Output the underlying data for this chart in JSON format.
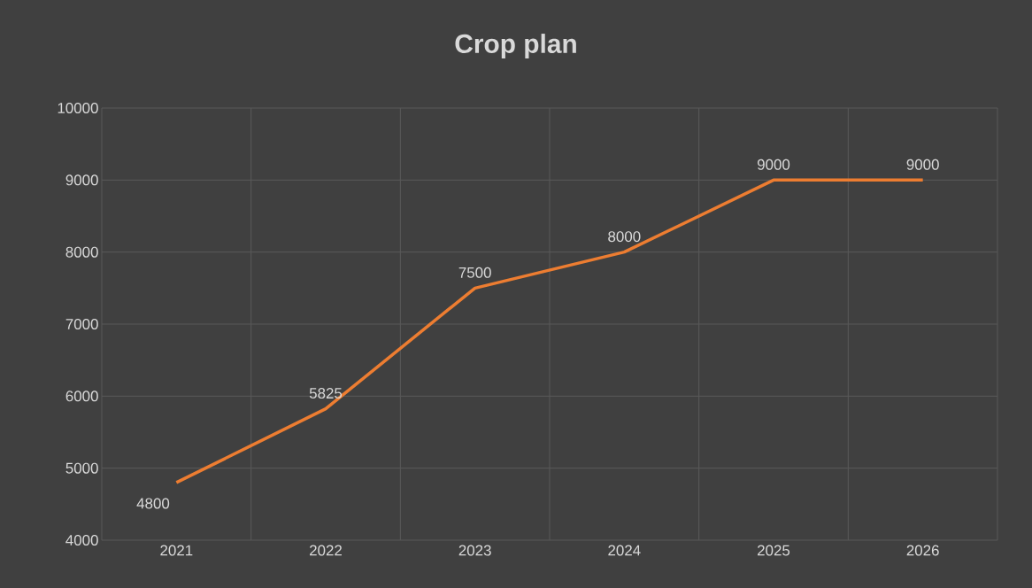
{
  "chart_data": {
    "type": "line",
    "title": "Crop plan",
    "categories": [
      "2021",
      "2022",
      "2023",
      "2024",
      "2025",
      "2026"
    ],
    "values": [
      4800,
      5825,
      7500,
      8000,
      9000,
      9000
    ],
    "color": "#ed7d31",
    "ylim": [
      4000,
      10000
    ],
    "yticks": [
      4000,
      5000,
      6000,
      7000,
      8000,
      9000,
      10000
    ],
    "grid": true,
    "data_labels": true,
    "marker": "none",
    "line_style": "solid"
  }
}
